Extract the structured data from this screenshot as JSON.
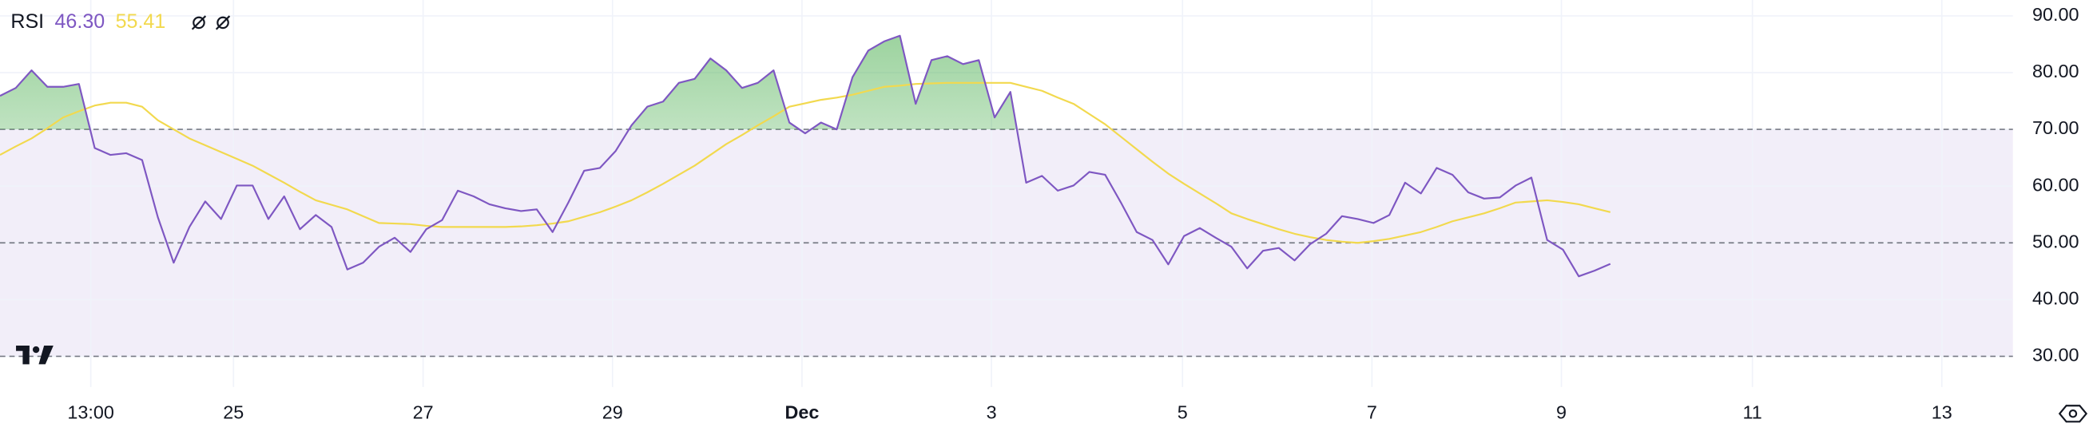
{
  "chart_data": {
    "type": "line",
    "title": "RSI",
    "series": [
      {
        "color": "#7e57c2",
        "value_label": "46.30",
        "values": [
          75.9,
          77.3,
          80.4,
          77.5,
          77.5,
          78,
          66.7,
          65.5,
          65.8,
          64.6,
          54.5,
          46.5,
          52.8,
          57.3,
          54.2,
          60.1,
          60.1,
          54.2,
          58.2,
          52.4,
          54.9,
          52.8,
          45.3,
          46.5,
          49.3,
          50.9,
          48.4,
          52.4,
          54,
          59.2,
          58.2,
          56.8,
          56.1,
          55.6,
          55.9,
          51.9,
          57.1,
          62.7,
          63.2,
          66.2,
          70.7,
          74,
          74.9,
          78.2,
          78.9,
          82.5,
          80.4,
          77.3,
          78.2,
          80.4,
          71.2,
          69.3,
          71.2,
          70,
          79.2,
          83.9,
          85.5,
          86.5,
          74.5,
          82.2,
          82.9,
          81.5,
          82.2,
          72.1,
          76.6,
          60.6,
          61.8,
          59.2,
          60.1,
          62.5,
          62,
          57.1,
          51.9,
          50.5,
          46.2,
          51.2,
          52.6,
          50.9,
          49.3,
          45.5,
          48.6,
          49.1,
          46.9,
          49.8,
          51.6,
          54.7,
          54.2,
          53.5,
          54.9,
          60.6,
          58.7,
          63.2,
          62,
          58.9,
          57.8,
          58,
          60.1,
          61.5,
          50.5,
          48.8,
          44.1,
          45.1,
          46.3
        ]
      },
      {
        "color": "#f2d94e",
        "value_label": "55.41",
        "values": [
          65.5,
          67,
          68.4,
          70.2,
          72.1,
          73.2,
          74.2,
          74.7,
          74.7,
          74,
          71.6,
          70,
          68.4,
          67.2,
          66,
          64.8,
          63.6,
          62.1,
          60.6,
          59,
          57.5,
          56.7,
          55.9,
          54.7,
          53.5,
          53.4,
          53.3,
          53,
          52.8,
          52.8,
          52.8,
          52.8,
          52.8,
          52.9,
          53.1,
          53.4,
          53.8,
          54.6,
          55.4,
          56.4,
          57.5,
          58.9,
          60.4,
          62,
          63.6,
          65.5,
          67.4,
          69,
          70.7,
          72.3,
          74,
          74.6,
          75.2,
          75.6,
          76.1,
          76.8,
          77.5,
          77.7,
          78,
          78.1,
          78.2,
          78.2,
          78.2,
          78.2,
          78.2,
          77.5,
          76.8,
          75.6,
          74.5,
          72.7,
          70.9,
          68.7,
          66.5,
          64.3,
          62.2,
          60.4,
          58.7,
          57,
          55.2,
          54.2,
          53.3,
          52.4,
          51.6,
          51,
          50.5,
          50.2,
          50,
          50.3,
          50.7,
          51.3,
          51.9,
          52.8,
          53.8,
          54.5,
          55.2,
          56.1,
          57.1,
          57.3,
          57.5,
          57.2,
          56.8,
          56.1,
          55.41
        ]
      }
    ],
    "xlim": [
      0,
      127.5
    ],
    "xticks": [
      {
        "value": 5.75,
        "label": "13:00"
      },
      {
        "value": 14.79,
        "label": "25"
      },
      {
        "value": 26.8,
        "label": "27"
      },
      {
        "value": 38.8,
        "label": "29"
      },
      {
        "value": 50.8,
        "label": "Dec"
      },
      {
        "value": 62.8,
        "label": "3"
      },
      {
        "value": 74.9,
        "label": "5"
      },
      {
        "value": 86.9,
        "label": "7"
      },
      {
        "value": 98.9,
        "label": "9"
      },
      {
        "value": 111,
        "label": "11"
      },
      {
        "value": 123,
        "label": "13"
      }
    ],
    "ylim": [
      24.6,
      92.8
    ],
    "yticks": [
      {
        "value": 30,
        "label": "30.00"
      },
      {
        "value": 40,
        "label": "40.00"
      },
      {
        "value": 50,
        "label": "50.00"
      },
      {
        "value": 60,
        "label": "60.00"
      },
      {
        "value": 70,
        "label": "70.00"
      },
      {
        "value": 80,
        "label": "80.00"
      },
      {
        "value": 90,
        "label": "90.00"
      }
    ],
    "levels": [
      30,
      50,
      70
    ],
    "grid": true
  }
}
